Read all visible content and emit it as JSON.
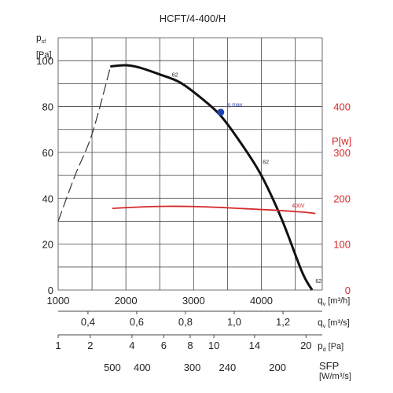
{
  "chart_data": {
    "type": "line",
    "title": "HCFT/4-400/H",
    "left_axis": {
      "label_main": "p",
      "label_sub": "sf",
      "unit": "[Pa]",
      "ticks": [
        0,
        20,
        40,
        60,
        80,
        100
      ],
      "range": [
        0,
        110
      ]
    },
    "right_axis": {
      "label": "P[w]",
      "ticks": [
        0,
        100,
        200,
        300,
        400
      ],
      "range": [
        0,
        550
      ],
      "color": "#d42a2a"
    },
    "x_axes": [
      {
        "id": "qv_m3h",
        "label_main": "q",
        "label_sub": "v",
        "unit": "[m³/h]",
        "ticks": [
          {
            "label": "1000",
            "value": 1000
          },
          {
            "label": "2000",
            "value": 2000
          },
          {
            "label": "3000",
            "value": 3000
          },
          {
            "label": "4000",
            "value": 4000
          }
        ]
      },
      {
        "id": "qv_m3s",
        "label_main": "q",
        "label_sub": "v",
        "unit": "[m³/s]",
        "ticks": [
          {
            "label": "0,4",
            "value": 1440
          },
          {
            "label": "0,6",
            "value": 2160
          },
          {
            "label": "0,8",
            "value": 2880
          },
          {
            "label": "1,0",
            "value": 3600
          },
          {
            "label": "1,2",
            "value": 4320
          }
        ]
      },
      {
        "id": "pd",
        "label_main": "p",
        "label_sub": "d",
        "unit": "[Pa]",
        "ticks": [
          {
            "label": "1",
            "value": 1000
          },
          {
            "label": "2",
            "value": 1475
          },
          {
            "label": "4",
            "value": 2090
          },
          {
            "label": "6",
            "value": 2560
          },
          {
            "label": "8",
            "value": 2950
          },
          {
            "label": "10",
            "value": 3300
          },
          {
            "label": "14",
            "value": 3900
          },
          {
            "label": "20",
            "value": 4660
          }
        ]
      },
      {
        "id": "sfp",
        "label": "SFP",
        "unit": "[W/m³/s]",
        "ticks": [
          {
            "label": "500",
            "value": 1800
          },
          {
            "label": "400",
            "value": 2240
          },
          {
            "label": "300",
            "value": 2980
          },
          {
            "label": "240",
            "value": 3500
          },
          {
            "label": "200",
            "value": 4240
          }
        ]
      }
    ],
    "x_range": [
      1000,
      4900
    ],
    "x_grid": [
      1000,
      1500,
      2000,
      2500,
      3000,
      3500,
      4000,
      4500
    ],
    "y_grid": [
      0,
      10,
      20,
      30,
      40,
      50,
      60,
      70,
      80,
      90,
      100
    ],
    "grid": true,
    "series": [
      {
        "name": "62",
        "axis": "left",
        "style": "dashed",
        "color": "#333333",
        "points": [
          [
            1000,
            30
          ],
          [
            1250,
            50
          ],
          [
            1500,
            68
          ],
          [
            1770,
            97
          ]
        ]
      },
      {
        "name": "62",
        "axis": "left",
        "style": "solid",
        "color": "#111111",
        "points": [
          [
            1770,
            97.5
          ],
          [
            2000,
            98
          ],
          [
            2200,
            97
          ],
          [
            2500,
            94
          ],
          [
            2800,
            90.5
          ],
          [
            3100,
            84
          ],
          [
            3400,
            76
          ],
          [
            3700,
            64
          ],
          [
            4000,
            50
          ],
          [
            4300,
            31
          ],
          [
            4600,
            8
          ],
          [
            4750,
            0
          ]
        ]
      },
      {
        "name": "400V",
        "axis": "right",
        "style": "solid",
        "color": "#d42a2a",
        "points": [
          [
            1800,
            178
          ],
          [
            2200,
            181
          ],
          [
            2600,
            182.5
          ],
          [
            3000,
            182
          ],
          [
            3400,
            180
          ],
          [
            3800,
            177
          ],
          [
            4200,
            174
          ],
          [
            4600,
            170
          ],
          [
            4800,
            167
          ]
        ]
      }
    ],
    "annotations": [
      {
        "text": "62",
        "x": 2680,
        "y": 93
      },
      {
        "text": "62",
        "x": 4020,
        "y": 55
      },
      {
        "text": "62",
        "x": 4800,
        "y": 3
      },
      {
        "text": "400V",
        "x": 4450,
        "y": 36,
        "color": "#d42a2a"
      },
      {
        "text": "η max",
        "x": 3500,
        "y": 80,
        "color": "#2a3fb0"
      }
    ],
    "eta_max_point": {
      "x": 3400,
      "y": 77.5,
      "color": "#1f3fb0"
    }
  }
}
